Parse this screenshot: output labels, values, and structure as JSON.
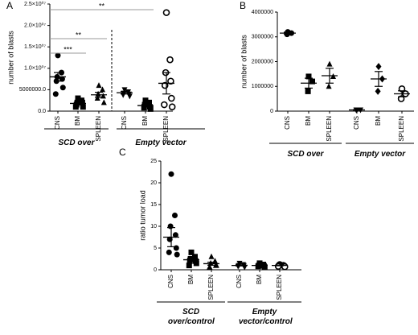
{
  "chart_data": [
    {
      "type": "dot",
      "panel": "A",
      "ylabel": "number of blasts",
      "categories": [
        "CNS",
        "BM",
        "SPLEEN",
        "CNS",
        "BM",
        "SPLEEN"
      ],
      "groups": [
        {
          "label": "SCD over",
          "members": [
            0,
            1,
            2
          ]
        },
        {
          "label": "Empty vector",
          "members": [
            3,
            4,
            5
          ]
        }
      ],
      "markers": [
        "circle",
        "square",
        "triangle",
        "triangle-down",
        "square",
        "circle-open"
      ],
      "points": [
        [
          13000000,
          9000000,
          8000000,
          7500000,
          7000000,
          5500000,
          4000000
        ],
        [
          3000000,
          2500000,
          2000000,
          2000000,
          1500000,
          1000000,
          1000000
        ],
        [
          6000000,
          5000000,
          4000000,
          3500000,
          3000000,
          2000000
        ],
        [
          5000000,
          4500000,
          4200000,
          4000000,
          3800000,
          3500000
        ],
        [
          2500000,
          2000000,
          1500000,
          1000000,
          800000,
          500000
        ],
        [
          23000000,
          12000000,
          9000000,
          7000000,
          6000000,
          3000000,
          1500000,
          1000000
        ]
      ],
      "means": [
        8000000,
        1800000,
        3800000,
        4300000,
        1300000,
        6500000
      ],
      "sems": [
        1000000,
        300000,
        600000,
        300000,
        300000,
        2500000
      ],
      "significance": [
        {
          "label": "***",
          "from": 0,
          "to": 1
        },
        {
          "label": "**",
          "from": 0,
          "to": 2
        },
        {
          "label": "**",
          "from": 0,
          "to": 4
        }
      ],
      "ylim": [
        0,
        25000000
      ],
      "yticks": [
        {
          "value": 0,
          "label": "0.0"
        },
        {
          "value": 5000000,
          "label": "5000000.0"
        },
        {
          "value": 10000000,
          "label": "1.0×10⁰⁷"
        },
        {
          "value": 15000000,
          "label": "1.5×10⁰⁷"
        },
        {
          "value": 20000000,
          "label": "2.0×10⁰⁷"
        },
        {
          "value": 25000000,
          "label": "2.5×10⁰⁷"
        }
      ]
    },
    {
      "type": "dot",
      "panel": "B",
      "ylabel": "number of blasts",
      "categories": [
        "CNS",
        "BM",
        "SPLEEN",
        "CNS",
        "BM",
        "SPLEEN"
      ],
      "groups": [
        {
          "label": "SCD over",
          "members": [
            0,
            1,
            2
          ]
        },
        {
          "label": "Empty vector",
          "members": [
            3,
            4,
            5
          ]
        }
      ],
      "markers": [
        "circle",
        "square",
        "triangle",
        "triangle-down",
        "diamond",
        "circle-open"
      ],
      "points": [
        [
          3200000,
          3150000,
          3100000
        ],
        [
          1400000,
          1200000,
          800000
        ],
        [
          1900000,
          1400000,
          1000000
        ],
        [
          50000,
          50000,
          50000
        ],
        [
          1800000,
          1300000,
          800000
        ],
        [
          900000,
          700000,
          500000
        ]
      ],
      "means": [
        3150000,
        1130000,
        1430000,
        50000,
        1300000,
        700000
      ],
      "sems": [
        40000,
        200000,
        300000,
        10000,
        300000,
        120000
      ],
      "ylim": [
        0,
        4000000
      ],
      "yticks": [
        0,
        1000000,
        2000000,
        3000000,
        4000000
      ]
    },
    {
      "type": "dot",
      "panel": "C",
      "ylabel": "ratio tumor load",
      "categories": [
        "CNS",
        "BM",
        "SPLEEN",
        "CNS",
        "BM",
        "SPLEEN"
      ],
      "groups": [
        {
          "label": "SCD over/control",
          "members": [
            0,
            1,
            2
          ]
        },
        {
          "label": "Empty vector/control",
          "members": [
            3,
            4,
            5
          ]
        }
      ],
      "markers": [
        "circle",
        "square",
        "triangle",
        "triangle-down",
        "square",
        "circle-open"
      ],
      "points": [
        [
          22,
          12.5,
          10,
          8,
          7,
          5,
          4,
          3.5
        ],
        [
          4,
          3,
          2.5,
          2,
          2,
          1.5,
          1
        ],
        [
          3,
          2,
          1.5,
          1,
          0.5,
          1,
          0.5
        ],
        [
          1.5,
          1.2,
          1,
          1,
          0.8,
          0.6
        ],
        [
          1.5,
          1.2,
          1,
          0.9,
          0.8,
          0.6
        ],
        [
          1.2,
          1,
          1,
          0.9,
          0.8,
          0.7
        ]
      ],
      "means": [
        7.5,
        2.3,
        1.4,
        1,
        1,
        1
      ],
      "sems": [
        2.2,
        0.4,
        0.35,
        0.12,
        0.12,
        0.08
      ],
      "ylim": [
        0,
        25
      ],
      "yticks": [
        0,
        5,
        10,
        15,
        20,
        25
      ]
    }
  ]
}
